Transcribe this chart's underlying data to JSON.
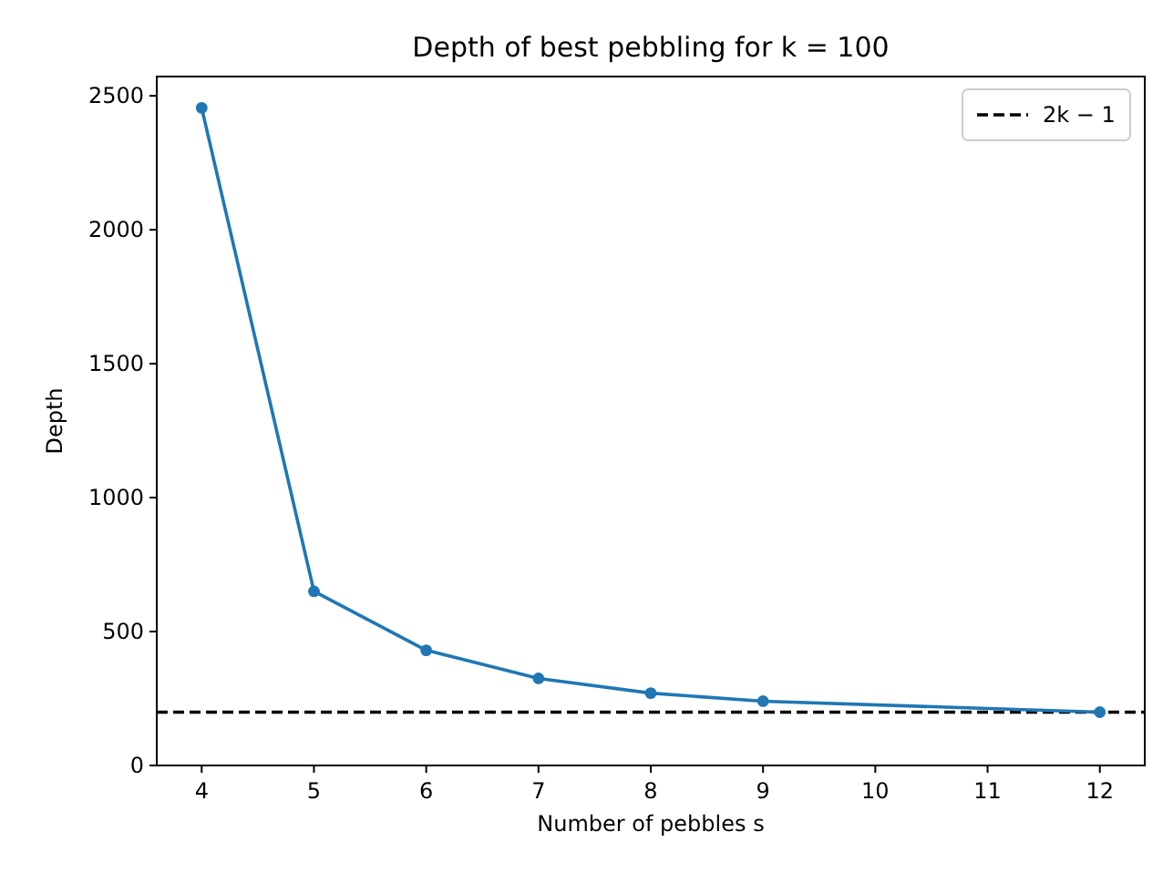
{
  "chart_data": {
    "type": "line",
    "title": "Depth of best pebbling for k = 100",
    "xlabel": "Number of pebbles s",
    "ylabel": "Depth",
    "x": [
      4,
      5,
      6,
      7,
      8,
      9,
      12
    ],
    "series": [
      {
        "color": "#1f77b4",
        "values": [
          2455,
          650,
          430,
          325,
          270,
          240,
          199
        ]
      }
    ],
    "marker": "circle",
    "line_style": "solid",
    "xlim": [
      3.6,
      12.4
    ],
    "xticks": [
      4,
      5,
      6,
      7,
      8,
      9,
      10,
      11,
      12
    ],
    "ylim": [
      0,
      2572
    ],
    "yticks": [
      0,
      500,
      1000,
      1500,
      2000,
      2500
    ],
    "ref_lines": [
      {
        "axis": "y",
        "value": 199,
        "label": "2k − 1",
        "color": "#000000",
        "line_style": "dashed"
      }
    ],
    "legend": "top right",
    "grid": false
  }
}
